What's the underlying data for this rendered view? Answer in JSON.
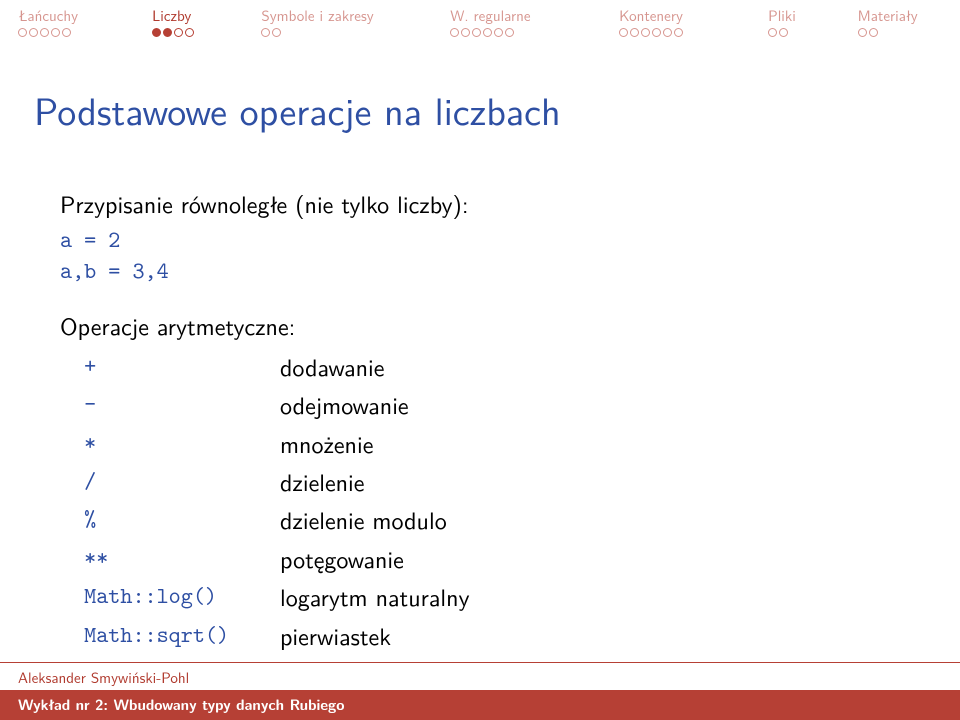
{
  "colors": {
    "accent_red": "#b64035",
    "accent_blue": "#2e4fa3",
    "background": "#ffffff",
    "text": "#000000",
    "white": "#ffffff"
  },
  "nav": {
    "sections": [
      {
        "label": "Łańcuchy",
        "widthPx": 135,
        "dots_total": 5,
        "dots_filled": 0,
        "current": false
      },
      {
        "label": "Liczby",
        "widthPx": 110,
        "dots_total": 4,
        "dots_filled": 2,
        "current": true
      },
      {
        "label": "Symbole i zakresy",
        "widthPx": 190,
        "dots_total": 2,
        "dots_filled": 0,
        "current": false
      },
      {
        "label": "W. regularne",
        "widthPx": 170,
        "dots_total": 6,
        "dots_filled": 0,
        "current": false
      },
      {
        "label": "Kontenery",
        "widthPx": 150,
        "dots_total": 6,
        "dots_filled": 0,
        "current": false
      },
      {
        "label": "Pliki",
        "widthPx": 90,
        "dots_total": 2,
        "dots_filled": 0,
        "current": false
      },
      {
        "label": "Materiały",
        "widthPx": 85,
        "dots_total": 2,
        "dots_filled": 0,
        "current": false
      }
    ]
  },
  "slide": {
    "title": "Podstawowe operacje na liczbach",
    "assignment_head": "Przypisanie równoległe (nie tylko liczby):",
    "code_lines": [
      "a = 2",
      "a,b = 3,4"
    ],
    "ops_head": "Operacje arytmetyczne:",
    "ops": [
      {
        "sym": "  +",
        "desc": "dodawanie"
      },
      {
        "sym": "  -",
        "desc": "odejmowanie"
      },
      {
        "sym": "  *",
        "desc": "mnożenie"
      },
      {
        "sym": "  /",
        "desc": "dzielenie"
      },
      {
        "sym": "  %",
        "desc": "dzielenie modulo"
      },
      {
        "sym": "  **",
        "desc": "potęgowanie"
      },
      {
        "sym": "  Math::log()",
        "desc": "logarytm naturalny"
      },
      {
        "sym": "  Math::sqrt()",
        "desc": "pierwiastek"
      }
    ]
  },
  "footer": {
    "author": "Aleksander Smywiński-Pohl",
    "lecture": "Wykład nr 2: Wbudowany typy danych Rubiego"
  }
}
